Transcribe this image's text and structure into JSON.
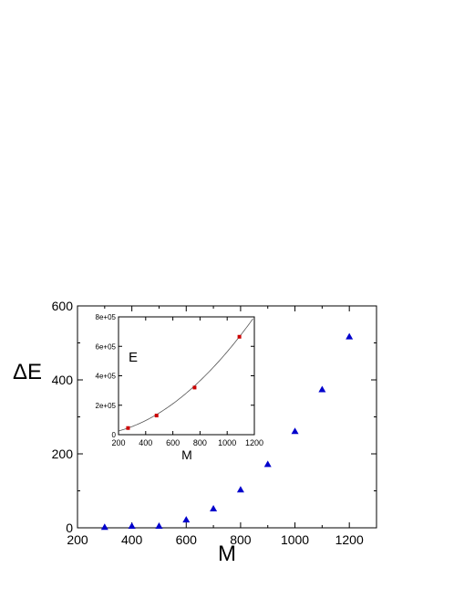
{
  "chart_data": [
    {
      "type": "scatter",
      "xlabel": "M",
      "ylabel": "ΔE",
      "xlim": [
        200,
        1300
      ],
      "ylim": [
        0,
        600
      ],
      "xticks": [
        200,
        400,
        600,
        800,
        1000,
        1200
      ],
      "yticks": [
        0,
        200,
        400,
        600
      ],
      "xtick_labels": [
        "200",
        "400",
        "600",
        "800",
        "1000",
        "1200"
      ],
      "ytick_labels": [
        "0",
        "200",
        "400",
        "600"
      ],
      "grid": false,
      "marker": "triangle",
      "color": "#0000cc",
      "series": [
        {
          "x": [
            300,
            400,
            500,
            600,
            700,
            800,
            900,
            1000,
            1100,
            1200
          ],
          "y": [
            2,
            5,
            5,
            22,
            52,
            103,
            172,
            261,
            374,
            517
          ]
        }
      ]
    },
    {
      "type": "scatter",
      "xlabel": "M",
      "ylabel": "E",
      "xlim": [
        200,
        1200
      ],
      "ylim": [
        0,
        800000
      ],
      "xticks": [
        200,
        400,
        600,
        800,
        1000,
        1200
      ],
      "yticks": [
        0,
        200000,
        400000,
        600000,
        800000
      ],
      "xtick_labels": [
        "200",
        "400",
        "600",
        "800",
        "1000",
        "1200"
      ],
      "ytick_labels": [
        "0",
        "2e+05",
        "4e+05",
        "6e+05",
        "8e+05"
      ],
      "grid": false,
      "marker": "square",
      "color": "#cc0000",
      "fit_color": "#555555",
      "series": [
        {
          "x": [
            270,
            480,
            760,
            1090
          ],
          "y": [
            45000,
            130000,
            320000,
            665000
          ]
        }
      ]
    }
  ]
}
